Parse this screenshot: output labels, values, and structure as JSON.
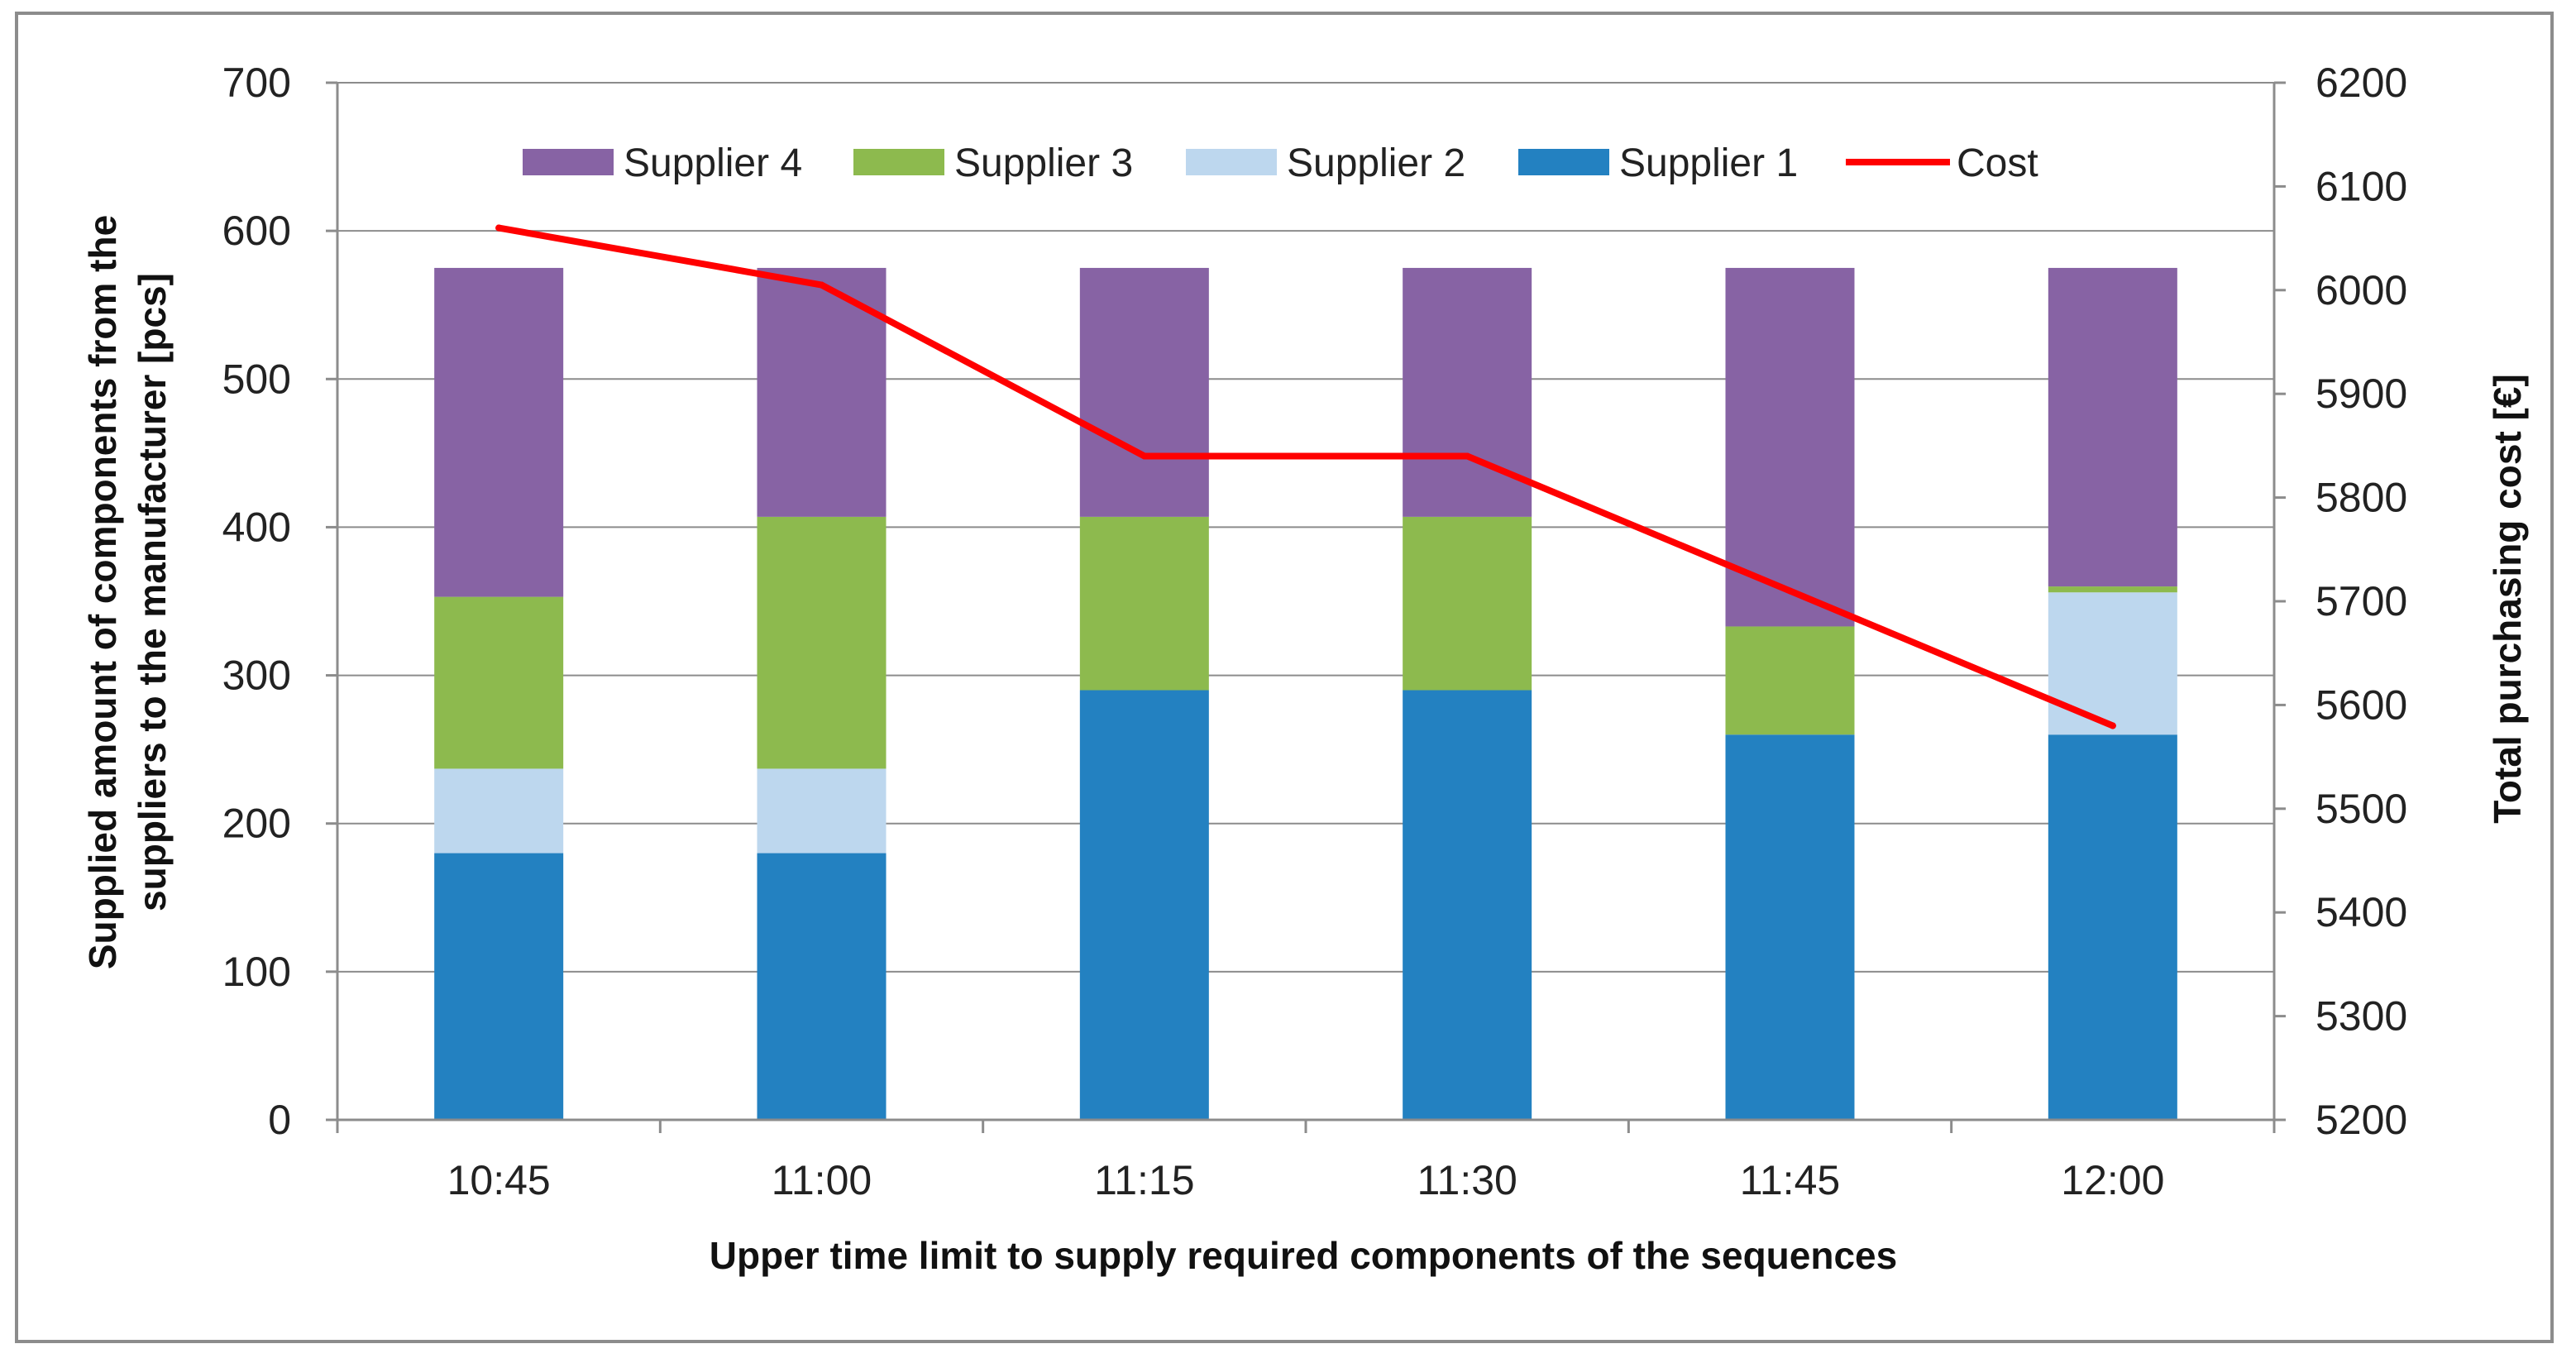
{
  "chart_data": {
    "type": "bar",
    "stacked": true,
    "categories": [
      "10:45",
      "11:00",
      "11:15",
      "11:30",
      "11:45",
      "12:00"
    ],
    "series": [
      {
        "name": "Supplier 1",
        "color": "#2381C1",
        "values": [
          180,
          180,
          290,
          290,
          260,
          260
        ]
      },
      {
        "name": "Supplier 2",
        "color": "#BDD7EE",
        "values": [
          57,
          57,
          0,
          0,
          0,
          96
        ]
      },
      {
        "name": "Supplier 3",
        "color": "#8DBA4E",
        "values": [
          116,
          170,
          117,
          117,
          73,
          4
        ]
      },
      {
        "name": "Supplier 4",
        "color": "#8763A4",
        "values": [
          222,
          168,
          168,
          168,
          242,
          215
        ]
      }
    ],
    "line_series": {
      "name": "Cost",
      "color": "#FF0000",
      "axis": "right",
      "values": [
        6060,
        6005,
        5840,
        5840,
        5710,
        5580
      ]
    },
    "xlabel": "Upper time limit to supply required components of the sequences",
    "ylabel_lines": [
      "Supplied amount of components from the",
      "suppliers  to the manufacturer [pcs]"
    ],
    "y2label": "Total purchasing cost [€]",
    "ylim": [
      0,
      700
    ],
    "y_ticks": [
      "0",
      "100",
      "200",
      "300",
      "400",
      "500",
      "600",
      "700"
    ],
    "y2lim": [
      5200,
      6200
    ],
    "y2_ticks": [
      "5200",
      "5300",
      "5400",
      "5500",
      "5600",
      "5700",
      "5800",
      "5900",
      "6000",
      "6100",
      "6200"
    ],
    "grid": true,
    "legend_position": "top",
    "legend_order": [
      "Supplier 4",
      "Supplier 3",
      "Supplier 2",
      "Supplier 1",
      "Cost"
    ]
  }
}
